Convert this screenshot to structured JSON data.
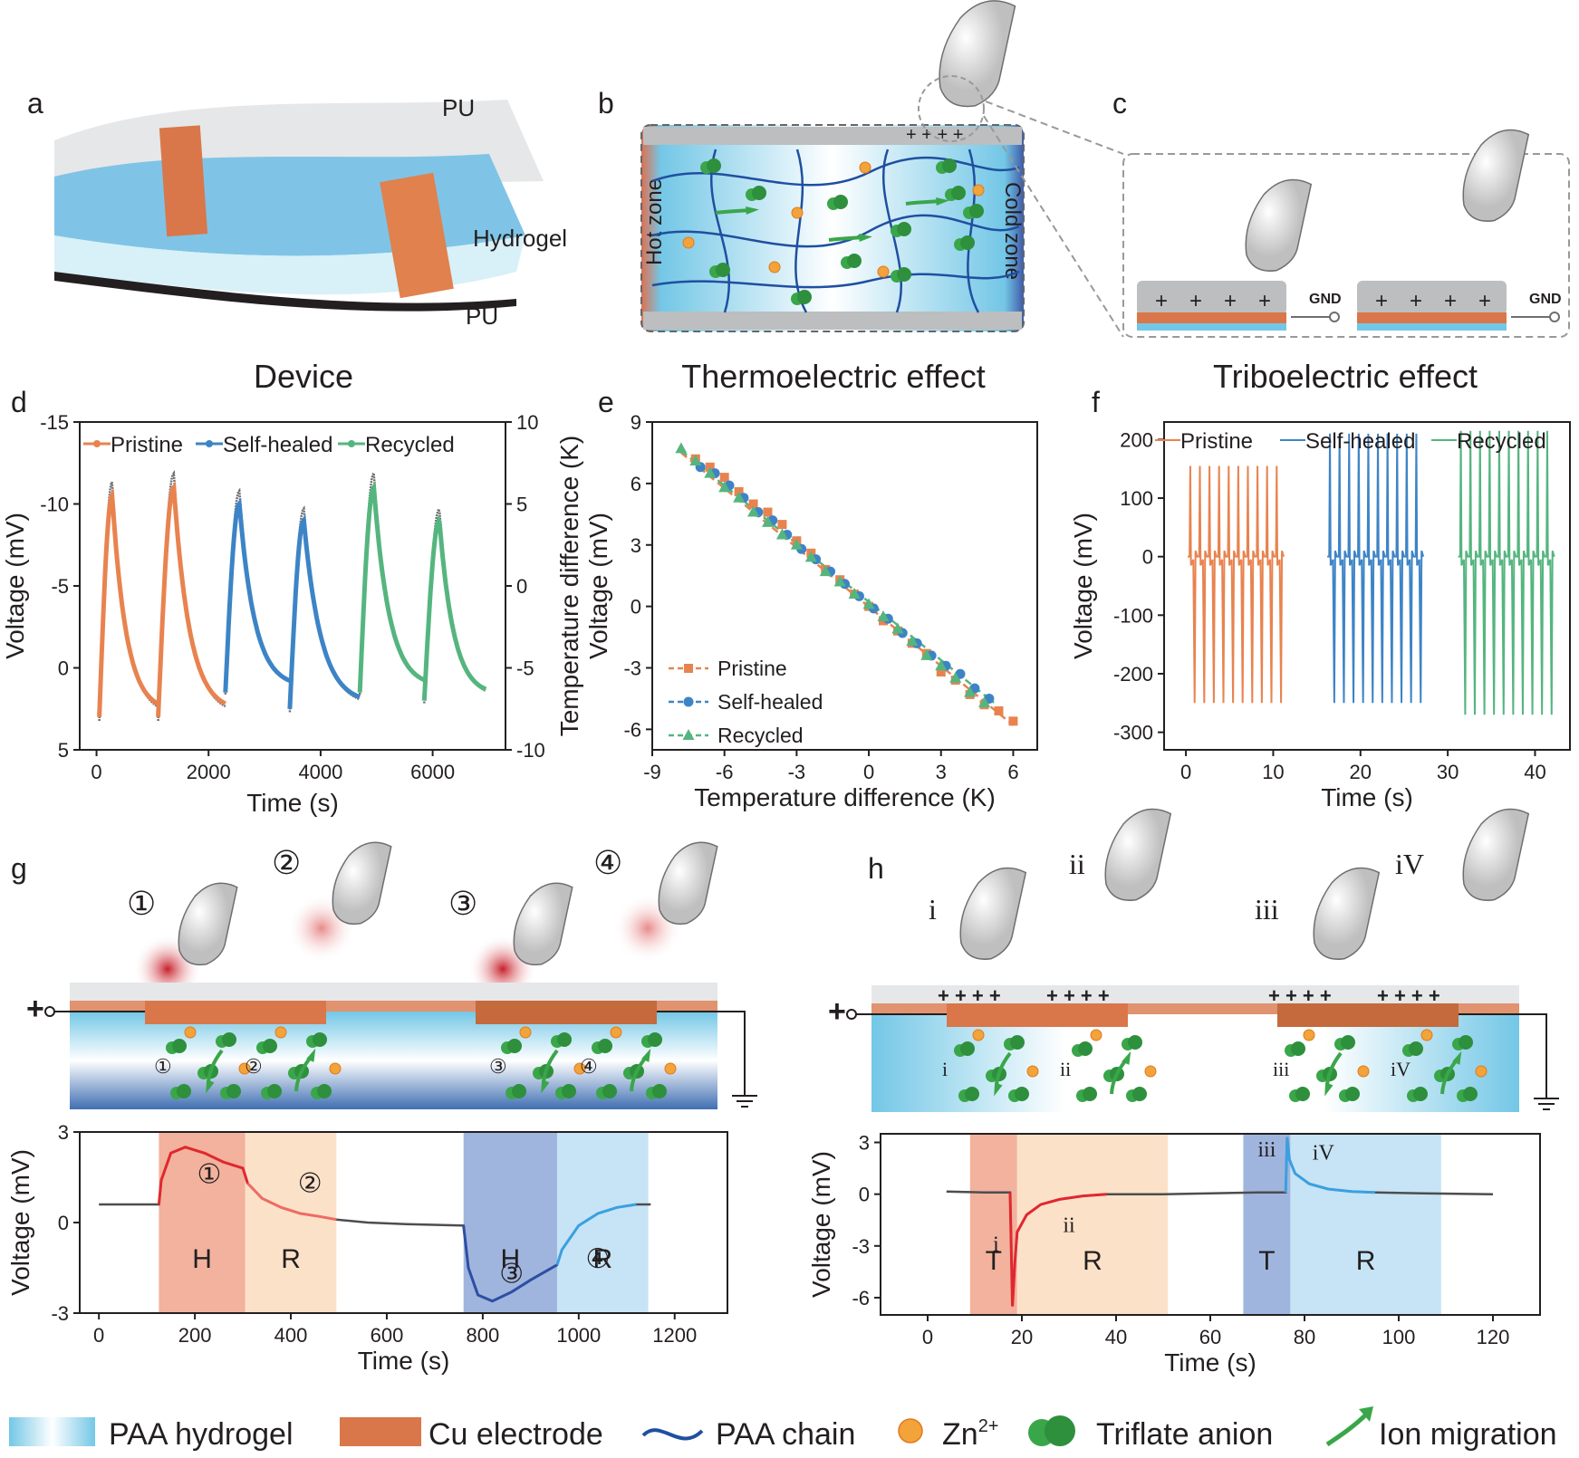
{
  "panels": {
    "a": {
      "letter": "a",
      "caption": "Device",
      "labels": [
        "PU",
        "Hydrogel",
        "PU"
      ]
    },
    "b": {
      "letter": "b",
      "caption": "Thermoelectric effect",
      "hot": "Hot zone",
      "cold": "Cold zone"
    },
    "c": {
      "letter": "c",
      "caption": "Triboelectric effect",
      "gnd": "GND"
    },
    "d": {
      "letter": "d"
    },
    "e": {
      "letter": "e"
    },
    "f": {
      "letter": "f"
    },
    "g": {
      "letter": "g"
    },
    "h": {
      "letter": "h"
    }
  },
  "colors": {
    "pristine": "#e8834f",
    "selfhealed": "#3d84c6",
    "recycled": "#55b57f",
    "gray": "#6d6e71",
    "copper": "#d9774a",
    "hydrogel": "#73c7e6",
    "zn": "#f2a33a",
    "anion": "#3aa64a",
    "chain": "#1f4fa0"
  },
  "chart_data": [
    {
      "id": "d",
      "type": "line",
      "xlabel": "Time (s)",
      "ylabel": "Voltage (mV)",
      "y2label": "Temperature difference (K)",
      "xlim": [
        -300,
        7300
      ],
      "ylim": [
        5,
        -15
      ],
      "y2lim": [
        -10,
        10
      ],
      "xticks": [
        "0",
        "2000",
        "4000",
        "6000"
      ],
      "yticks": [
        "-15",
        "-10",
        "-5",
        "0",
        "5"
      ],
      "y2ticks": [
        "10",
        "5",
        "0",
        "-5",
        "-10"
      ],
      "legend": [
        "Pristine",
        "Self-healed",
        "Recycled"
      ],
      "peaks": [
        {
          "series": "Pristine",
          "start_time": 50,
          "peak_time": 280,
          "end_time": 1100,
          "start_v": 3.0,
          "peak_v": -10.5
        },
        {
          "series": "Pristine",
          "start_time": 1100,
          "peak_time": 1380,
          "end_time": 2300,
          "start_v": 3.0,
          "peak_v": -11.0
        },
        {
          "series": "Self-healed",
          "start_time": 2300,
          "peak_time": 2550,
          "end_time": 3450,
          "start_v": 1.5,
          "peak_v": -10.0
        },
        {
          "series": "Self-healed",
          "start_time": 3450,
          "peak_time": 3700,
          "end_time": 4700,
          "start_v": 2.5,
          "peak_v": -9.0
        },
        {
          "series": "Recycled",
          "start_time": 4700,
          "peak_time": 4950,
          "end_time": 5850,
          "start_v": 1.5,
          "peak_v": -11.0
        },
        {
          "series": "Recycled",
          "start_time": 5850,
          "peak_time": 6120,
          "end_time": 6950,
          "start_v": 2.0,
          "peak_v": -9.0
        }
      ]
    },
    {
      "id": "e",
      "type": "scatter",
      "xlabel": "Temperature difference (K)",
      "ylabel": "Voltage (mV)",
      "xlim": [
        -9,
        7
      ],
      "ylim": [
        -7,
        9
      ],
      "xticks": [
        "-9",
        "-6",
        "-3",
        "0",
        "3",
        "6"
      ],
      "yticks": [
        "-6",
        "-3",
        "0",
        "3",
        "6",
        "9"
      ],
      "series": [
        {
          "name": "Pristine",
          "x": [
            -7.2,
            -6.6,
            -6.0,
            -5.4,
            -4.8,
            -4.2,
            -3.6,
            -3.0,
            -2.4,
            -1.8,
            -1.2,
            -0.6,
            0,
            0.6,
            1.2,
            1.8,
            2.4,
            3.0,
            3.6,
            4.2,
            4.8,
            5.4,
            6.0
          ],
          "y": [
            7.2,
            6.8,
            6.3,
            5.6,
            5.0,
            4.6,
            4.0,
            3.2,
            2.6,
            1.8,
            1.3,
            0.6,
            0.0,
            -0.7,
            -1.2,
            -1.8,
            -2.3,
            -3.2,
            -3.6,
            -4.3,
            -4.8,
            -5.1,
            -5.6
          ]
        },
        {
          "name": "Self-healed",
          "x": [
            -7.0,
            -6.4,
            -5.8,
            -5.2,
            -4.6,
            -4.0,
            -3.4,
            -2.8,
            -2.2,
            -1.6,
            -1.0,
            -0.4,
            0.2,
            0.8,
            1.4,
            2.0,
            2.6,
            3.2,
            3.8,
            4.4,
            5.0
          ],
          "y": [
            6.8,
            6.5,
            5.9,
            5.3,
            4.6,
            4.2,
            3.5,
            2.8,
            2.3,
            1.7,
            1.1,
            0.5,
            -0.1,
            -0.6,
            -1.3,
            -1.8,
            -2.4,
            -2.9,
            -3.3,
            -4.0,
            -4.5
          ]
        },
        {
          "name": "Recycled",
          "x": [
            -7.8,
            -7.2,
            -6.6,
            -6.0,
            -5.4,
            -4.8,
            -4.2,
            -3.6,
            -3.0,
            -2.4,
            -1.8,
            -1.2,
            -0.6,
            0,
            0.6,
            1.2,
            1.8,
            2.4,
            3.0,
            3.6,
            4.2,
            4.8
          ],
          "y": [
            7.7,
            7.1,
            6.5,
            5.8,
            5.3,
            4.6,
            4.1,
            3.5,
            3.0,
            2.4,
            1.7,
            1.2,
            0.6,
            0.1,
            -0.5,
            -1.1,
            -1.7,
            -2.4,
            -2.9,
            -3.5,
            -4.2,
            -4.7
          ]
        }
      ],
      "legend": [
        "Pristine",
        "Self-healed",
        "Recycled"
      ]
    },
    {
      "id": "f",
      "type": "line",
      "xlabel": "Time (s)",
      "ylabel": "Voltage (mV)",
      "xlim": [
        -2.5,
        44
      ],
      "ylim": [
        -330,
        230
      ],
      "xticks": [
        "0",
        "10",
        "20",
        "30",
        "40"
      ],
      "yticks": [
        "-300",
        "-200",
        "-100",
        "0",
        "100",
        "200"
      ],
      "legend": [
        "Pristine",
        "Self-healed",
        "Recycled"
      ],
      "series": [
        {
          "name": "Pristine",
          "spike_times": [
            0.5,
            1.6,
            2.7,
            3.8,
            4.9,
            6.0,
            7.1,
            8.2,
            9.3,
            10.4
          ],
          "max_v": 155,
          "min_v": -250
        },
        {
          "name": "Self-healed",
          "spike_times": [
            16.5,
            17.6,
            18.7,
            19.8,
            20.9,
            22.0,
            23.1,
            24.2,
            25.3,
            26.4
          ],
          "max_v": 210,
          "min_v": -250
        },
        {
          "name": "Recycled",
          "spike_times": [
            31.5,
            32.6,
            33.7,
            34.8,
            35.9,
            37.0,
            38.1,
            39.2,
            40.3,
            41.4
          ],
          "max_v": 215,
          "min_v": -270
        }
      ]
    },
    {
      "id": "g",
      "type": "line",
      "xlabel": "Time (s)",
      "ylabel": "Voltage (mV)",
      "xlim": [
        -40,
        1310
      ],
      "ylim": [
        -3,
        3
      ],
      "xticks": [
        "0",
        "200",
        "400",
        "600",
        "800",
        "1000",
        "1200"
      ],
      "yticks": [
        "-3",
        "0",
        "3"
      ],
      "regions": [
        {
          "label": "H",
          "from": 125,
          "to": 305,
          "color": "#f0a58c"
        },
        {
          "label": "R",
          "from": 305,
          "to": 495,
          "color": "#fbdcc0"
        },
        {
          "label": "H",
          "from": 760,
          "to": 955,
          "color": "#8fa8d8"
        },
        {
          "label": "R",
          "from": 955,
          "to": 1145,
          "color": "#bcdff3"
        }
      ],
      "curve_labels": [
        "①",
        "②",
        "③",
        "④"
      ],
      "trace": {
        "t": [
          0,
          125,
          130,
          150,
          180,
          220,
          260,
          300,
          310,
          340,
          380,
          420,
          460,
          495,
          560,
          640,
          760,
          770,
          790,
          820,
          860,
          900,
          955,
          965,
          1000,
          1040,
          1080,
          1120,
          1150
        ],
        "v": [
          0.6,
          0.6,
          1.4,
          2.3,
          2.5,
          2.3,
          2.0,
          1.8,
          1.3,
          0.8,
          0.5,
          0.3,
          0.2,
          0.1,
          0.0,
          -0.05,
          -0.1,
          -1.5,
          -2.4,
          -2.6,
          -2.3,
          -1.9,
          -1.4,
          -0.9,
          -0.1,
          0.3,
          0.5,
          0.6,
          0.6
        ]
      }
    },
    {
      "id": "h",
      "type": "line",
      "xlabel": "Time (s)",
      "ylabel": "Voltage (mV)",
      "xlim": [
        -10,
        130
      ],
      "ylim": [
        -7,
        3.5
      ],
      "xticks": [
        "0",
        "20",
        "40",
        "60",
        "80",
        "100",
        "120"
      ],
      "yticks": [
        "-6",
        "-3",
        "0",
        "3"
      ],
      "regions": [
        {
          "label": "T",
          "from": 9,
          "to": 19,
          "color": "#f0a58c"
        },
        {
          "label": "R",
          "from": 19,
          "to": 51,
          "color": "#fbdcc0"
        },
        {
          "label": "T",
          "from": 67,
          "to": 77,
          "color": "#8fa8d8"
        },
        {
          "label": "R",
          "from": 77,
          "to": 109,
          "color": "#bcdff3"
        }
      ],
      "curve_labels": [
        "i",
        "ii",
        "iii",
        "iV"
      ],
      "trace": {
        "t": [
          4,
          12,
          17.5,
          18,
          18.5,
          19,
          21,
          24,
          28,
          33,
          38,
          50,
          60,
          70,
          76,
          76.3,
          76.8,
          78,
          81,
          85,
          90,
          95,
          105,
          120
        ],
        "v": [
          0.15,
          0.1,
          0.1,
          -6.5,
          -4.0,
          -2.2,
          -1.2,
          -0.6,
          -0.3,
          -0.1,
          0.0,
          0.0,
          0.05,
          0.1,
          0.1,
          3.3,
          2.0,
          1.2,
          0.6,
          0.3,
          0.15,
          0.1,
          0.05,
          0.0
        ]
      }
    }
  ],
  "schematic_g": {
    "steps": [
      "①",
      "②",
      "③",
      "④"
    ],
    "plus": "+"
  },
  "schematic_h": {
    "steps": [
      "i",
      "ii",
      "iii",
      "iV"
    ],
    "plus": "+"
  },
  "legend_bottom": {
    "hydrogel": "PAA hydrogel",
    "electrode": "Cu electrode",
    "chain": "PAA chain",
    "zn": "Zn",
    "zn_sup": "2+",
    "anion": "Triflate anion",
    "migration": "Ion migration"
  }
}
